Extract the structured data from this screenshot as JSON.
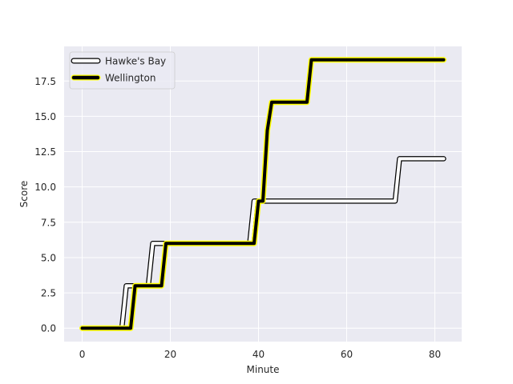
{
  "chart_data": {
    "type": "line",
    "title": "",
    "xlabel": "Minute",
    "ylabel": "Score",
    "xlim": [
      -4.1,
      86.1
    ],
    "ylim": [
      -0.95,
      19.95
    ],
    "grid": true,
    "legend_position": "upper-left",
    "background_color": "#eaeaf2",
    "xticks": [
      0,
      20,
      40,
      60,
      80
    ],
    "xtick_labels": [
      "0",
      "20",
      "40",
      "60",
      "80"
    ],
    "yticks": [
      0.0,
      2.5,
      5.0,
      7.5,
      10.0,
      12.5,
      15.0,
      17.5
    ],
    "ytick_labels": [
      "0.0",
      "2.5",
      "5.0",
      "7.5",
      "10.0",
      "12.5",
      "15.0",
      "17.5"
    ],
    "series": [
      {
        "name": "Hawke's Bay",
        "style": "double-outline",
        "color": "#000000",
        "fill_color": "#ffffff",
        "points": [
          [
            0,
            0
          ],
          [
            9,
            0
          ],
          [
            10,
            3
          ],
          [
            15,
            3
          ],
          [
            16,
            6
          ],
          [
            38,
            6
          ],
          [
            39,
            9
          ],
          [
            71,
            9
          ],
          [
            72,
            12
          ],
          [
            82,
            12
          ]
        ]
      },
      {
        "name": "Wellington",
        "style": "thick-glow",
        "color": "#000000",
        "glow_color": "#ffff00",
        "points": [
          [
            0,
            0
          ],
          [
            11,
            0
          ],
          [
            12,
            3
          ],
          [
            18,
            3
          ],
          [
            19,
            6
          ],
          [
            39,
            6
          ],
          [
            40,
            9
          ],
          [
            41,
            9
          ],
          [
            42,
            14
          ],
          [
            43,
            16
          ],
          [
            51,
            16
          ],
          [
            52,
            19
          ],
          [
            82,
            19
          ]
        ]
      }
    ]
  }
}
